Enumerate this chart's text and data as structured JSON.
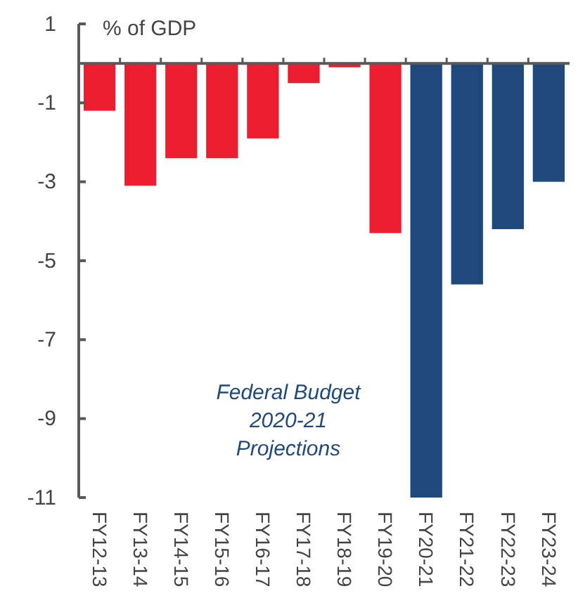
{
  "chart_data": {
    "type": "bar",
    "ylabel": "% of GDP",
    "categories": [
      "FY12-13",
      "FY13-14",
      "FY14-15",
      "FY15-16",
      "FY16-17",
      "FY17-18",
      "FY18-19",
      "FY19-20",
      "FY20-21",
      "FY21-22",
      "FY22-23",
      "FY23-24"
    ],
    "values": [
      -1.2,
      -3.1,
      -2.4,
      -2.4,
      -1.9,
      -0.5,
      -0.1,
      -4.3,
      -11.0,
      -5.6,
      -4.2,
      -3.0
    ],
    "colors": [
      "#ed1c2e",
      "#ed1c2e",
      "#ed1c2e",
      "#ed1c2e",
      "#ed1c2e",
      "#ed1c2e",
      "#ed1c2e",
      "#ed1c2e",
      "#1f497d",
      "#1f497d",
      "#1f497d",
      "#1f497d"
    ],
    "ylim": [
      -11,
      1
    ],
    "yticks": [
      1,
      -1,
      -3,
      -5,
      -7,
      -9,
      -11
    ],
    "annotations": [
      "Federal Budget\n2020-21\nProjections"
    ],
    "grid": false
  }
}
